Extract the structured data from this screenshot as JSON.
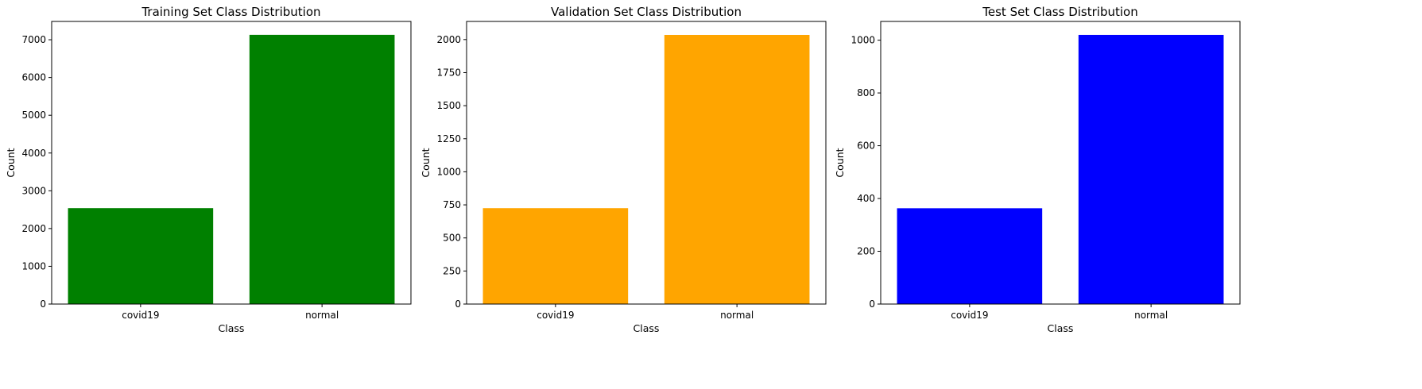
{
  "chart_data": [
    {
      "type": "bar",
      "title": "Training Set Class Distribution",
      "xlabel": "Class",
      "ylabel": "Count",
      "categories": [
        "covid19",
        "normal"
      ],
      "values": [
        2540,
        7130
      ],
      "ylim": [
        0,
        7485
      ],
      "yticks": [
        0,
        1000,
        2000,
        3000,
        4000,
        5000,
        6000,
        7000
      ],
      "color": "#008000",
      "grid": false,
      "legend": false
    },
    {
      "type": "bar",
      "title": "Validation Set Class Distribution",
      "xlabel": "Class",
      "ylabel": "Count",
      "categories": [
        "covid19",
        "normal"
      ],
      "values": [
        725,
        2035
      ],
      "ylim": [
        0,
        2137
      ],
      "yticks": [
        0,
        250,
        500,
        750,
        1000,
        1250,
        1500,
        1750,
        2000
      ],
      "color": "#ffa500",
      "grid": false,
      "legend": false
    },
    {
      "type": "bar",
      "title": "Test Set Class Distribution",
      "xlabel": "Class",
      "ylabel": "Count",
      "categories": [
        "covid19",
        "normal"
      ],
      "values": [
        363,
        1020
      ],
      "ylim": [
        0,
        1071
      ],
      "yticks": [
        0,
        200,
        400,
        600,
        800,
        1000
      ],
      "color": "#0000ff",
      "grid": false,
      "legend": false
    }
  ]
}
